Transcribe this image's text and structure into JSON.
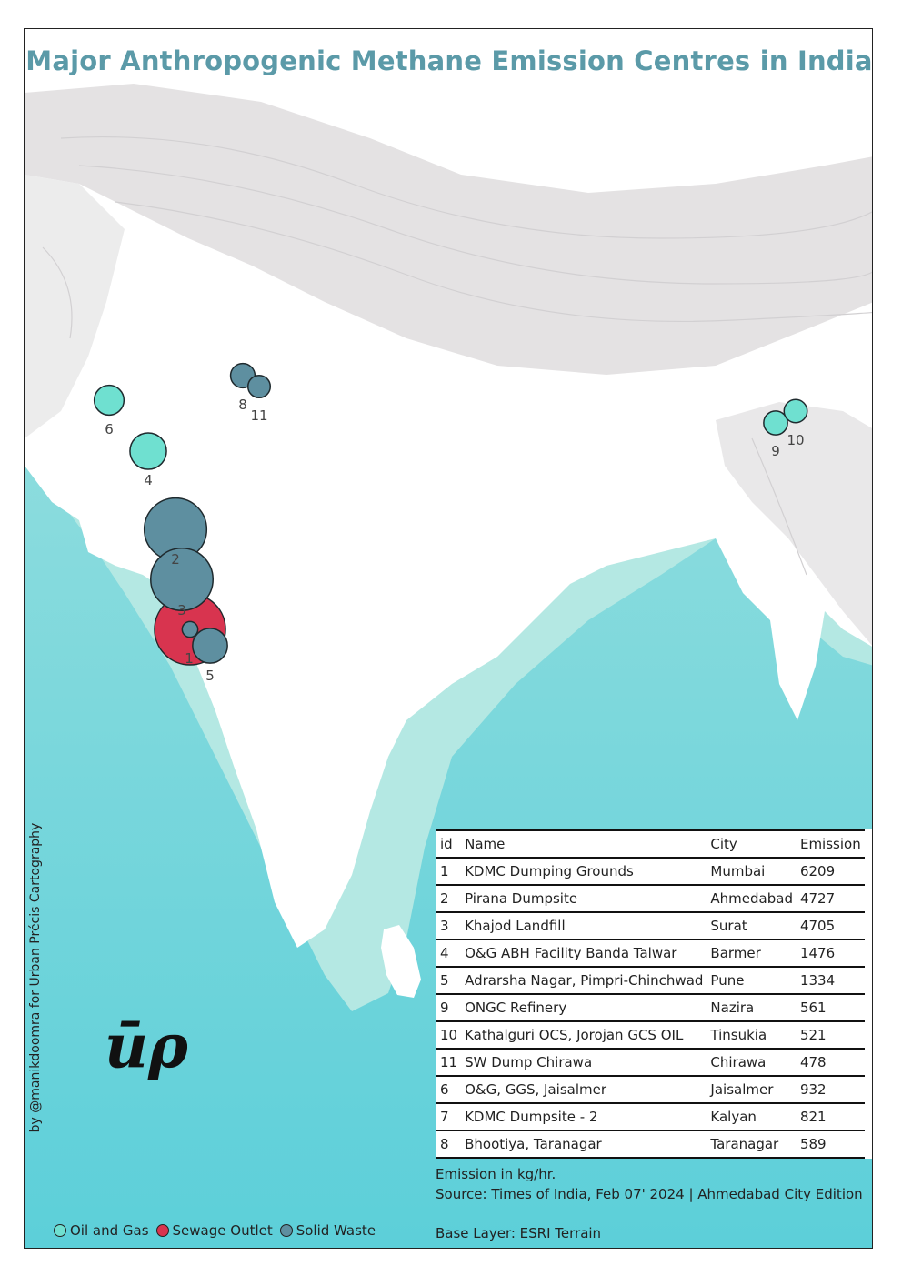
{
  "title": "Major Anthropogenic Methane Emission Centres in India",
  "credit": "by @manikdoomra for Urban Précis Cartography",
  "logo": "ūρ",
  "colors": {
    "oil_and_gas": "#6fe0d0",
    "sewage_outlet": "#d8344f",
    "solid_waste": "#5e8fa0",
    "title": "#5b9aa8",
    "sea": "#7fd6d8",
    "land": "#ffffff"
  },
  "markers": [
    {
      "id": "1",
      "category": "sewage_outlet",
      "emission": 6209
    },
    {
      "id": "1",
      "category": "solid_waste",
      "emission": 200
    },
    {
      "id": "2",
      "category": "solid_waste",
      "emission": 4727
    },
    {
      "id": "3",
      "category": "solid_waste",
      "emission": 4705
    },
    {
      "id": "4",
      "category": "oil_and_gas",
      "emission": 1476
    },
    {
      "id": "5",
      "category": "solid_waste",
      "emission": 1334
    },
    {
      "id": "6",
      "category": "oil_and_gas",
      "emission": 932
    },
    {
      "id": "8",
      "category": "solid_waste",
      "emission": 589
    },
    {
      "id": "9",
      "category": "oil_and_gas",
      "emission": 561
    },
    {
      "id": "10",
      "category": "oil_and_gas",
      "emission": 521
    },
    {
      "id": "11",
      "category": "solid_waste",
      "emission": 478
    }
  ],
  "table": {
    "headers": [
      "id",
      "Name",
      "City",
      "Emission"
    ],
    "rows": [
      [
        "1",
        "KDMC Dumping Grounds",
        "Mumbai",
        "6209"
      ],
      [
        "2",
        "Pirana Dumpsite",
        "Ahmedabad",
        "4727"
      ],
      [
        "3",
        "Khajod Landfill",
        "Surat",
        "4705"
      ],
      [
        "4",
        "O&G ABH Facility Banda Talwar",
        "Barmer",
        "1476"
      ],
      [
        "5",
        "Adrarsha Nagar, Pimpri-Chinchwad",
        "Pune",
        "1334"
      ],
      [
        "9",
        "ONGC Refinery",
        "Nazira",
        "561"
      ],
      [
        "10",
        "Kathalguri OCS, Jorojan GCS OIL",
        "Tinsukia",
        "521"
      ],
      [
        "11",
        "SW Dump Chirawa",
        "Chirawa",
        "478"
      ],
      [
        "6",
        "O&G, GGS, Jaisalmer",
        "Jaisalmer",
        "932"
      ],
      [
        "7",
        "KDMC Dumpsite - 2",
        "Kalyan",
        "821"
      ],
      [
        "8",
        "Bhootiya, Taranagar",
        "Taranagar",
        "589"
      ]
    ]
  },
  "notes": {
    "units": "Emission in kg/hr.",
    "source": "Source: Times of India, Feb 07' 2024 | Ahmedabad City Edition",
    "base_layer": "Base Layer: ESRI Terrain"
  },
  "legend": [
    {
      "key": "oil_and_gas",
      "label": "Oil and Gas"
    },
    {
      "key": "sewage_outlet",
      "label": "Sewage Outlet"
    },
    {
      "key": "solid_waste",
      "label": "Solid Waste"
    }
  ]
}
